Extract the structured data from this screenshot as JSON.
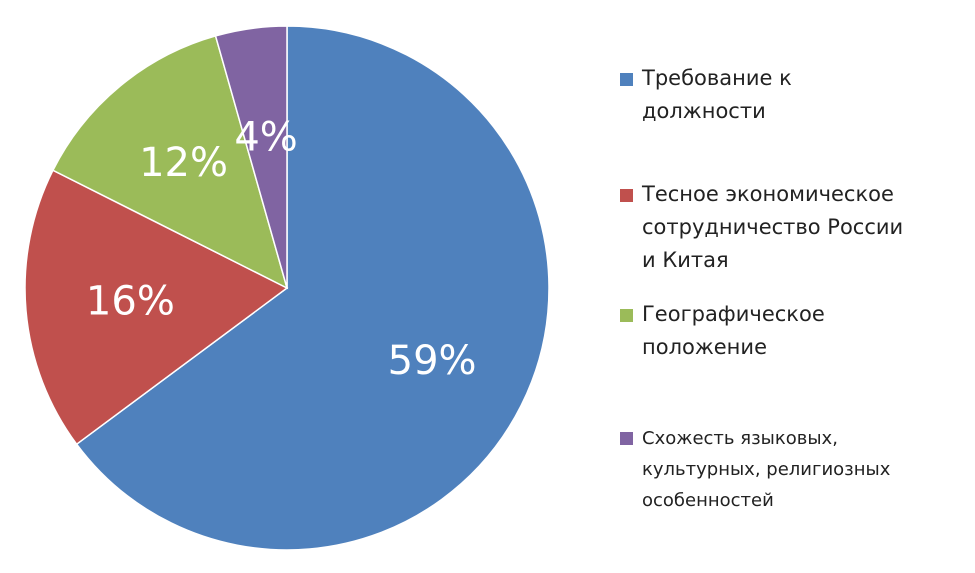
{
  "chart_data": {
    "type": "pie",
    "categories": [
      "Требование к должности",
      "Тесное экономическое сотрудничество России и Китая",
      "Географическое положение",
      "Схожесть языковых, культурных, религиозных особенностей"
    ],
    "values": [
      59,
      16,
      12,
      4
    ],
    "value_labels": [
      "59%",
      "16%",
      "12%",
      "4%"
    ],
    "colors": [
      "#4F81BD",
      "#C0504D",
      "#9BBB59",
      "#8064A2"
    ],
    "legend_position": "right"
  },
  "legend": {
    "items": [
      {
        "lines": [
          "Требование к",
          "должности"
        ],
        "color": "#4F81BD"
      },
      {
        "lines": [
          "Тесное экономическое",
          "сотрудничество России",
          "и Китая"
        ],
        "color": "#C0504D"
      },
      {
        "lines": [
          "Географическое",
          "положение"
        ],
        "color": "#9BBB59"
      },
      {
        "lines": [
          "Схожесть языковых,",
          "культурных, религиозных",
          "особенностей"
        ],
        "color": "#8064A2"
      }
    ]
  }
}
